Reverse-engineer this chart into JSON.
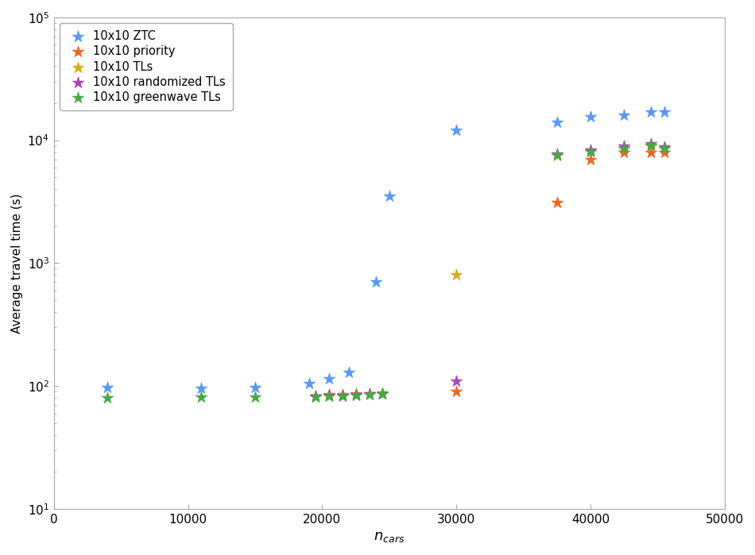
{
  "series": [
    {
      "label": "10x10 ZTC",
      "color": "#5599FF",
      "x": [
        4000,
        11000,
        15000,
        19000,
        20500,
        22000,
        24000,
        25000,
        30000,
        37500,
        40000,
        42500,
        44500,
        45500
      ],
      "y": [
        97,
        96,
        98,
        105,
        115,
        130,
        700,
        3500,
        12000,
        14000,
        15500,
        16000,
        17000,
        17000
      ]
    },
    {
      "label": "10x10 priority",
      "color": "#EE6622",
      "x": [
        19500,
        20500,
        21500,
        22500,
        23500,
        24500,
        30000,
        37500,
        40000,
        42500,
        44500,
        45500
      ],
      "y": [
        83,
        85,
        85,
        86,
        87,
        88,
        90,
        3100,
        7000,
        8000,
        8000,
        8000
      ]
    },
    {
      "label": "10x10 TLs",
      "color": "#DDAA11",
      "x": [
        19500,
        20500,
        21500,
        22500,
        23500,
        24500,
        30000,
        37500,
        40000,
        42500,
        44500,
        45500
      ],
      "y": [
        83,
        84,
        84,
        85,
        86,
        87,
        800,
        7500,
        8200,
        8700,
        9000,
        8600
      ]
    },
    {
      "label": "10x10 randomized TLs",
      "color": "#AA44BB",
      "x": [
        19500,
        20500,
        21500,
        22500,
        23500,
        24500,
        30000,
        37500,
        40000,
        42500,
        44500,
        45500
      ],
      "y": [
        83,
        84,
        84,
        85,
        86,
        87,
        110,
        7700,
        8300,
        8900,
        9300,
        8800
      ]
    },
    {
      "label": "10x10 greenwave TLs",
      "color": "#44AA44",
      "x": [
        4000,
        11000,
        15000,
        19500,
        20500,
        21500,
        22500,
        23500,
        24500,
        37500,
        40000,
        42500,
        44500,
        45500
      ],
      "y": [
        80,
        82,
        82,
        82,
        83,
        83,
        84,
        85,
        86,
        7600,
        8100,
        8600,
        9100,
        8600
      ]
    }
  ],
  "xlabel": "$n_{cars}$",
  "ylabel": "Average travel time (s)",
  "xlim": [
    0,
    50000
  ],
  "ylim": [
    10,
    100000
  ],
  "xticks": [
    0,
    10000,
    20000,
    30000,
    40000,
    50000
  ],
  "ytick_labels": [
    "$10^1$",
    "$10^2$",
    "$10^3$",
    "$10^4$",
    "$10^5$"
  ],
  "background_color": "#ffffff",
  "legend_loc": "upper left"
}
